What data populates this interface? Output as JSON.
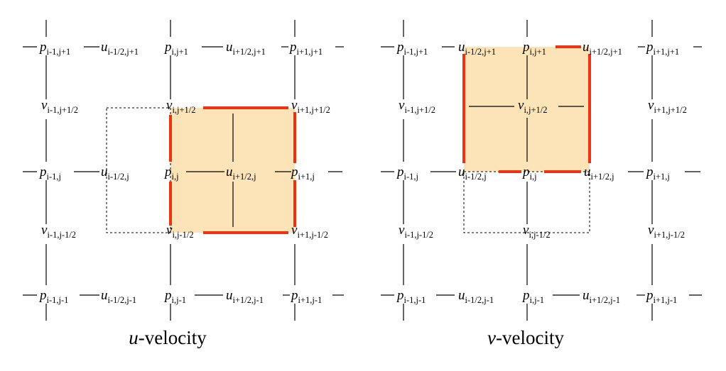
{
  "colors": {
    "cell_fill": "#fce4b8",
    "boundary": "#ee3311",
    "line": "#000000"
  },
  "panels": [
    {
      "caption": {
        "var": "u",
        "text": "-velocity"
      },
      "labels": [
        {
          "id": "p-i-1-j+1",
          "v": "p",
          "s": "i-1,j+1"
        },
        {
          "id": "u-i-1/2-j+1",
          "v": "u",
          "s": "i-1/2,j+1"
        },
        {
          "id": "p-i-j+1",
          "v": "p",
          "s": "i,j+1"
        },
        {
          "id": "u-i+1/2-j+1",
          "v": "u",
          "s": "i+1/2,j+1"
        },
        {
          "id": "p-i+1-j+1",
          "v": "p",
          "s": "i+1,j+1"
        },
        {
          "id": "v-i-1-j+1/2",
          "v": "v",
          "s": "i-1,j+1/2"
        },
        {
          "id": "v-i-j+1/2",
          "v": "v",
          "s": "i,j+1/2"
        },
        {
          "id": "v-i+1-j+1/2",
          "v": "v",
          "s": "i+1,j+1/2"
        },
        {
          "id": "p-i-1-j",
          "v": "p",
          "s": "i-1,j"
        },
        {
          "id": "u-i-1/2-j",
          "v": "u",
          "s": "i-1/2,j"
        },
        {
          "id": "p-i-j",
          "v": "p",
          "s": "i,j"
        },
        {
          "id": "u-i+1/2-j",
          "v": "u",
          "s": "i+1/2,j"
        },
        {
          "id": "p-i+1-j",
          "v": "p",
          "s": "i+1,j"
        },
        {
          "id": "v-i-1-j-1/2",
          "v": "v",
          "s": "i-1,j-1/2"
        },
        {
          "id": "v-i-j-1/2",
          "v": "v",
          "s": "i,j-1/2"
        },
        {
          "id": "v-i+1-j-1/2",
          "v": "v",
          "s": "i+1,j-1/2"
        },
        {
          "id": "p-i-1-j-1",
          "v": "p",
          "s": "i-1,j-1"
        },
        {
          "id": "u-i-1/2-j-1",
          "v": "u",
          "s": "i-1/2,j-1"
        },
        {
          "id": "p-i-j-1",
          "v": "p",
          "s": "i,j-1"
        },
        {
          "id": "u-i+1/2-j-1",
          "v": "u",
          "s": "i+1/2,j-1"
        },
        {
          "id": "p-i+1-j-1",
          "v": "p",
          "s": "i+1,j-1"
        }
      ]
    },
    {
      "caption": {
        "var": "v",
        "text": "-velocity"
      },
      "labels": [
        {
          "id": "p-i-1-j+1",
          "v": "p",
          "s": "i-1,j+1"
        },
        {
          "id": "u-i-1/2-j+1",
          "v": "u",
          "s": "i-1/2,j+1"
        },
        {
          "id": "p-i-j+1",
          "v": "p",
          "s": "i,j+1"
        },
        {
          "id": "u-i+1/2-j+1",
          "v": "u",
          "s": "i+1/2,j+1"
        },
        {
          "id": "p-i+1-j+1",
          "v": "p",
          "s": "i+1,j+1"
        },
        {
          "id": "v-i-1-j+1/2",
          "v": "v",
          "s": "i-1,j+1/2"
        },
        {
          "id": "v-i-j+1/2",
          "v": "v",
          "s": "i,j+1/2"
        },
        {
          "id": "v-i+1-j+1/2",
          "v": "v",
          "s": "i+1,j+1/2"
        },
        {
          "id": "p-i-1-j",
          "v": "p",
          "s": "i-1,j"
        },
        {
          "id": "u-i-1/2-j",
          "v": "u",
          "s": "i-1/2,j"
        },
        {
          "id": "p-i-j",
          "v": "p",
          "s": "i,j"
        },
        {
          "id": "u-i+1/2-j",
          "v": "u",
          "s": "i+1/2,j"
        },
        {
          "id": "p-i+1-j",
          "v": "p",
          "s": "i+1,j"
        },
        {
          "id": "v-i-1-j-1/2",
          "v": "v",
          "s": "i-1,j-1/2"
        },
        {
          "id": "v-i-j-1/2",
          "v": "v",
          "s": "i,j-1/2"
        },
        {
          "id": "v-i+1-j-1/2",
          "v": "v",
          "s": "i+1,j-1/2"
        },
        {
          "id": "p-i-1-j-1",
          "v": "p",
          "s": "i-1,j-1"
        },
        {
          "id": "u-i-1/2-j-1",
          "v": "u",
          "s": "i-1/2,j-1"
        },
        {
          "id": "p-i-j-1",
          "v": "p",
          "s": "i,j-1"
        },
        {
          "id": "u-i+1/2-j-1",
          "v": "u",
          "s": "i+1/2,j-1"
        },
        {
          "id": "p-i+1-j-1",
          "v": "p",
          "s": "i+1,j-1"
        }
      ]
    }
  ]
}
